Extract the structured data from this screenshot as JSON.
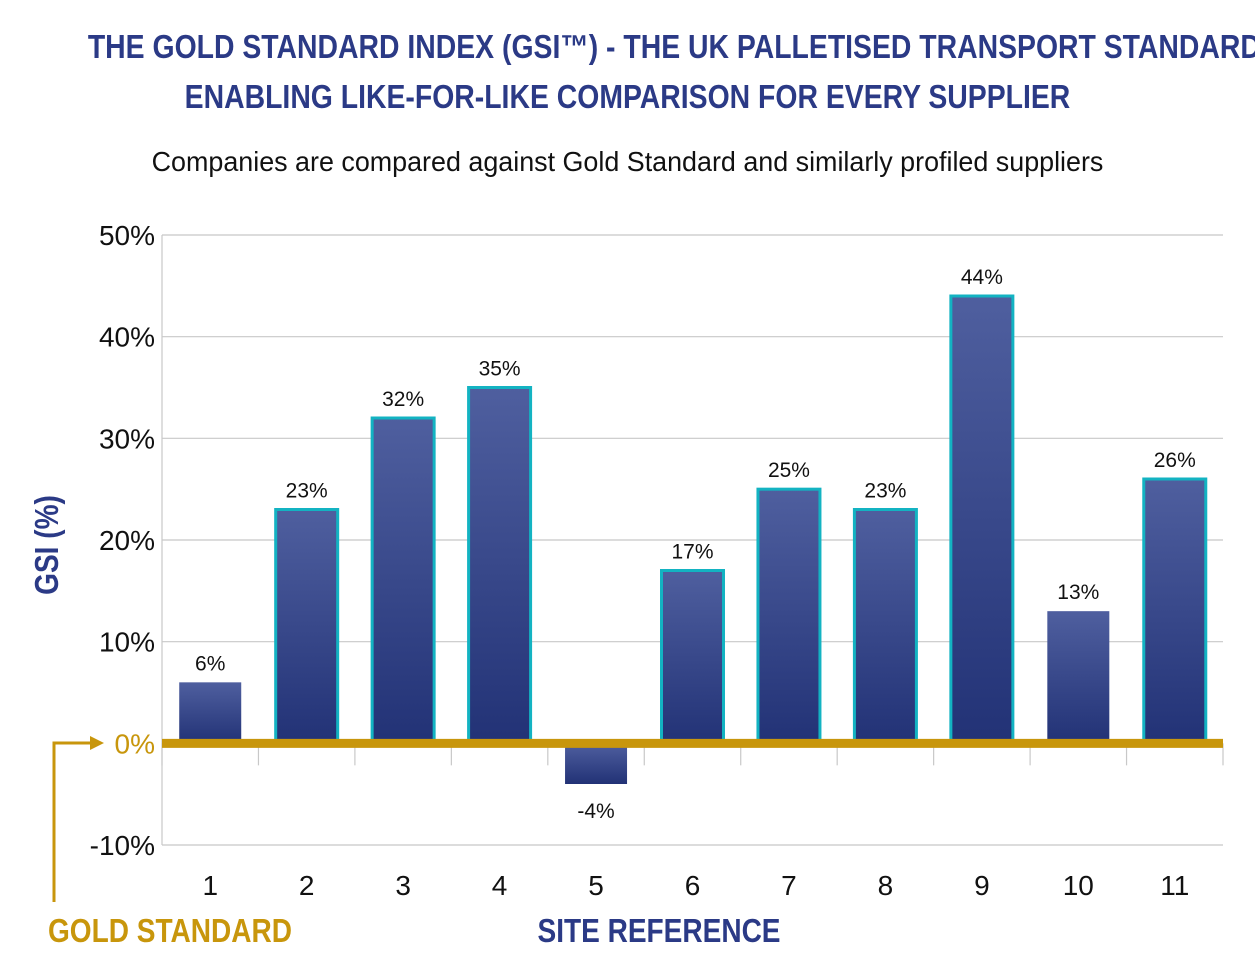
{
  "title_line1": "THE GOLD STANDARD INDEX (GSI™) - THE UK PALLETISED TRANSPORT STANDARD",
  "title_line2": "ENABLING LIKE-FOR-LIKE COMPARISON FOR EVERY SUPPLIER",
  "subtitle": "Companies are compared against Gold Standard and similarly profiled suppliers",
  "gold_standard_label": "GOLD STANDARD",
  "colors": {
    "title": "#2b3a86",
    "bar_fill_top": "#4f5f9f",
    "bar_fill_bottom": "#223276",
    "bar_outline": "#13b3c2",
    "gold": "#c8960c",
    "grid": "#c8c8c8"
  },
  "chart_data": {
    "type": "bar",
    "categories": [
      "1",
      "2",
      "3",
      "4",
      "5",
      "6",
      "7",
      "8",
      "9",
      "10",
      "11"
    ],
    "values": [
      6,
      23,
      32,
      35,
      -4,
      17,
      25,
      23,
      44,
      13,
      26
    ],
    "data_labels": [
      "6%",
      "23%",
      "32%",
      "35%",
      "-4%",
      "17%",
      "25%",
      "23%",
      "44%",
      "13%",
      "26%"
    ],
    "outlined": [
      false,
      true,
      true,
      true,
      false,
      true,
      true,
      true,
      true,
      false,
      true
    ],
    "xlabel": "SITE REFERENCE",
    "ylabel": "GSI (%)",
    "ylim": [
      -10,
      50
    ],
    "yticks": [
      50,
      40,
      30,
      20,
      10,
      0,
      -10
    ],
    "ytick_labels": [
      "50%",
      "40%",
      "30%",
      "20%",
      "10%",
      "0%",
      "-10%"
    ],
    "grid": true,
    "baseline_value": 0
  }
}
